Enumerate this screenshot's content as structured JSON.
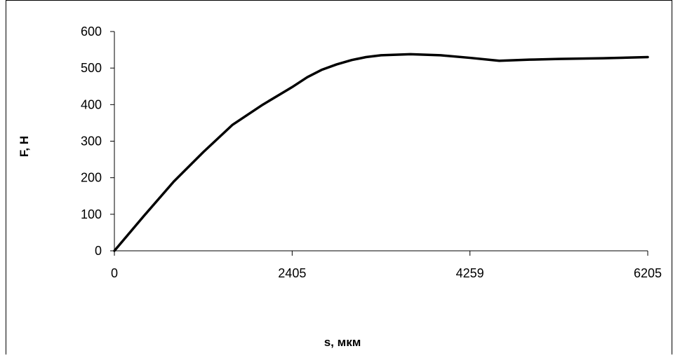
{
  "chart_data": {
    "type": "line",
    "title": "",
    "xlabel": "s, мкм",
    "ylabel": "F, Н",
    "x_ticks": [
      "0",
      "2405",
      "4259",
      "6205"
    ],
    "y_ticks": [
      "0",
      "100",
      "200",
      "300",
      "400",
      "500",
      "600"
    ],
    "ylim": [
      0,
      600
    ],
    "grid": false,
    "legend": "none",
    "line_color": "#000000",
    "series": [
      {
        "x_index": [
          0,
          0.33,
          0.67,
          1.0,
          1.33,
          1.67,
          2.0,
          2.17,
          2.33,
          2.5,
          2.67,
          2.83,
          3.0,
          3.33,
          3.67,
          4.0,
          4.33,
          4.67,
          5.0,
          5.5,
          6.0
        ],
        "values": [
          0,
          95,
          190,
          270,
          345,
          400,
          448,
          475,
          495,
          510,
          522,
          530,
          535,
          538,
          535,
          528,
          520,
          523,
          525,
          527,
          530
        ]
      }
    ]
  }
}
